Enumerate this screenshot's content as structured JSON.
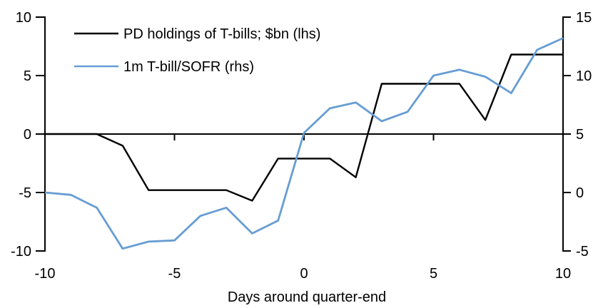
{
  "chart_data": {
    "type": "line",
    "xlabel": "Days around quarter-end",
    "xlim": [
      -10,
      10
    ],
    "x_ticks": [
      -10,
      -5,
      0,
      5,
      10
    ],
    "x": [
      -10,
      -9,
      -8,
      -7,
      -6,
      -5,
      -4,
      -3,
      -2,
      -1,
      0,
      1,
      2,
      3,
      4,
      5,
      6,
      7,
      8,
      9,
      10
    ],
    "series": [
      {
        "name": "PD holdings of T-bills; $bn (lhs)",
        "axis": "left",
        "color": "#000000",
        "values": [
          0.0,
          0.0,
          0.0,
          -1.0,
          -4.8,
          -4.8,
          -4.8,
          -4.8,
          -5.7,
          -2.1,
          -2.1,
          -2.1,
          -3.7,
          4.3,
          4.3,
          4.3,
          4.3,
          1.2,
          6.8,
          6.8,
          6.8
        ]
      },
      {
        "name": "1m T-bill/SOFR (rhs)",
        "axis": "right",
        "color": "#679DD2",
        "values": [
          0.0,
          -0.2,
          -1.3,
          -4.8,
          -4.2,
          -4.1,
          -2.0,
          -1.3,
          -3.5,
          -2.4,
          5.1,
          7.2,
          7.7,
          6.1,
          6.9,
          10.0,
          10.5,
          9.9,
          8.5,
          12.2,
          13.2
        ]
      }
    ],
    "left_axis": {
      "ylim": [
        -10,
        10
      ],
      "ticks": [
        10,
        5,
        0,
        -5,
        -10
      ]
    },
    "right_axis": {
      "ylim": [
        -5,
        15
      ],
      "ticks": [
        15,
        10,
        5,
        0,
        -5
      ]
    },
    "grid": false,
    "legend_position": "top-left",
    "axis_color": "#000000",
    "background": "#FFFFFF"
  }
}
